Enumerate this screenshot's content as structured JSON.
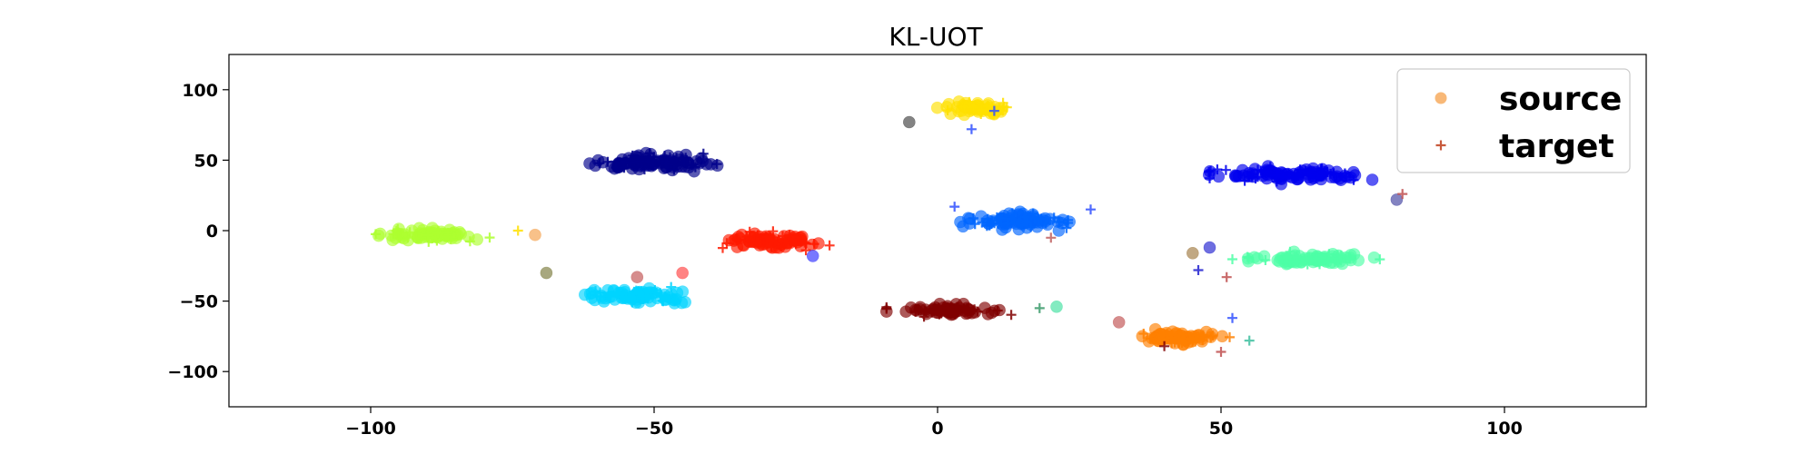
{
  "chart_data": {
    "type": "scatter",
    "title": "KL-UOT",
    "xlabel": "",
    "ylabel": "",
    "xlim": [
      -125,
      125
    ],
    "ylim": [
      -125,
      125
    ],
    "xticks": [
      -100,
      -50,
      0,
      50,
      100
    ],
    "yticks": [
      -100,
      -50,
      0,
      50,
      100
    ],
    "xtick_labels": [
      "−100",
      "−50",
      "0",
      "50",
      "100"
    ],
    "ytick_labels": [
      "−100",
      "−50",
      "0",
      "50",
      "100"
    ],
    "grid": false,
    "legend": {
      "position": "top-right",
      "entries": [
        {
          "label": "source",
          "marker": "circle",
          "color": "#f5a04a"
        },
        {
          "label": "target",
          "marker": "plus",
          "color": "#c85a3c"
        }
      ]
    },
    "clusters": [
      {
        "color": "#adff2f",
        "center": [
          -90,
          -3
        ],
        "spread": [
          11,
          5
        ],
        "n": 60
      },
      {
        "color": "#00008b",
        "center": [
          -50,
          48
        ],
        "spread": [
          14,
          7
        ],
        "n": 80
      },
      {
        "color": "#ff1a00",
        "center": [
          -30,
          -7
        ],
        "spread": [
          11,
          7
        ],
        "n": 65
      },
      {
        "color": "#00d4ff",
        "center": [
          -53,
          -46
        ],
        "spread": [
          11,
          6
        ],
        "n": 65
      },
      {
        "color": "#ffe000",
        "center": [
          7,
          87
        ],
        "spread": [
          8,
          5
        ],
        "n": 45
      },
      {
        "color": "#0066ff",
        "center": [
          15,
          7
        ],
        "spread": [
          11,
          7
        ],
        "n": 65
      },
      {
        "color": "#800000",
        "center": [
          2,
          -57
        ],
        "spread": [
          11,
          5
        ],
        "n": 55
      },
      {
        "color": "#0000ee",
        "center": [
          62,
          40
        ],
        "spread": [
          16,
          7
        ],
        "n": 75
      },
      {
        "color": "#4dffa6",
        "center": [
          66,
          -20
        ],
        "spread": [
          14,
          5
        ],
        "n": 65
      },
      {
        "color": "#ff8000",
        "center": [
          43,
          -76
        ],
        "spread": [
          10,
          6
        ],
        "n": 55
      }
    ],
    "stray_points": [
      {
        "x": -71,
        "y": -3,
        "color": "#f5a04a",
        "marker": "circle"
      },
      {
        "x": -74,
        "y": 0,
        "color": "#ffe000",
        "marker": "plus"
      },
      {
        "x": -69,
        "y": -30,
        "color": "#7a7a3a",
        "marker": "circle"
      },
      {
        "x": -53,
        "y": -33,
        "color": "#c05050",
        "marker": "circle"
      },
      {
        "x": -45,
        "y": -30,
        "color": "#ff4040",
        "marker": "circle"
      },
      {
        "x": -22,
        "y": -18,
        "color": "#3030ff",
        "marker": "circle"
      },
      {
        "x": -5,
        "y": 77,
        "color": "#404040",
        "marker": "circle"
      },
      {
        "x": 10,
        "y": 85,
        "color": "#3050ff",
        "marker": "plus"
      },
      {
        "x": 6,
        "y": 72,
        "color": "#3050ff",
        "marker": "plus"
      },
      {
        "x": 3,
        "y": 17,
        "color": "#3050ff",
        "marker": "plus"
      },
      {
        "x": 27,
        "y": 15,
        "color": "#3050ff",
        "marker": "plus"
      },
      {
        "x": 20,
        "y": -5,
        "color": "#c06060",
        "marker": "plus"
      },
      {
        "x": 18,
        "y": -55,
        "color": "#3a9a6a",
        "marker": "plus"
      },
      {
        "x": 21,
        "y": -54,
        "color": "#40e0a0",
        "marker": "circle"
      },
      {
        "x": 45,
        "y": -16,
        "color": "#a07a40",
        "marker": "circle"
      },
      {
        "x": 46,
        "y": -28,
        "color": "#2020d0",
        "marker": "plus"
      },
      {
        "x": 48,
        "y": -12,
        "color": "#2020d0",
        "marker": "circle"
      },
      {
        "x": 51,
        "y": -33,
        "color": "#c05050",
        "marker": "plus"
      },
      {
        "x": 81,
        "y": 22,
        "color": "#4040a0",
        "marker": "circle"
      },
      {
        "x": 82,
        "y": 26,
        "color": "#c05050",
        "marker": "plus"
      },
      {
        "x": 32,
        "y": -65,
        "color": "#c05050",
        "marker": "circle"
      },
      {
        "x": 40,
        "y": -82,
        "color": "#800000",
        "marker": "plus"
      },
      {
        "x": 52,
        "y": -62,
        "color": "#3050ff",
        "marker": "plus"
      },
      {
        "x": 55,
        "y": -78,
        "color": "#40c0a0",
        "marker": "plus"
      },
      {
        "x": 50,
        "y": -86,
        "color": "#c05050",
        "marker": "plus"
      }
    ]
  }
}
